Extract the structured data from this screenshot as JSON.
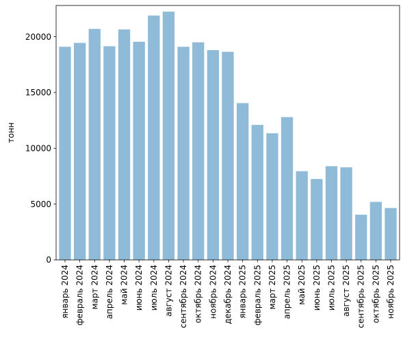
{
  "chart_data": {
    "type": "bar",
    "title": "",
    "xlabel": "",
    "ylabel": "тонн",
    "ylim": [
      0,
      22800
    ],
    "yticks": [
      0,
      5000,
      10000,
      15000,
      20000
    ],
    "grid": false,
    "bar_color": "#8fbbd9",
    "categories": [
      "январь 2024",
      "февраль 2024",
      "март 2024",
      "апрель 2024",
      "май 2024",
      "июнь 2024",
      "июль 2024",
      "август 2024",
      "сентябрь 2024",
      "октябрь 2024",
      "ноябрь 2024",
      "декабрь 2024",
      "январь 2025",
      "февраль 2025",
      "март 2025",
      "апрель 2025",
      "май 2025",
      "июнь 2025",
      "июль 2025",
      "август 2025",
      "сентябрь 2025",
      "октябрь 2025",
      "ноябрь 2025"
    ],
    "values": [
      19100,
      19450,
      20700,
      19150,
      20650,
      19550,
      21900,
      22250,
      19100,
      19500,
      18800,
      18650,
      14050,
      12100,
      11350,
      12800,
      7950,
      7250,
      8400,
      8300,
      4050,
      5200,
      4650
    ]
  }
}
